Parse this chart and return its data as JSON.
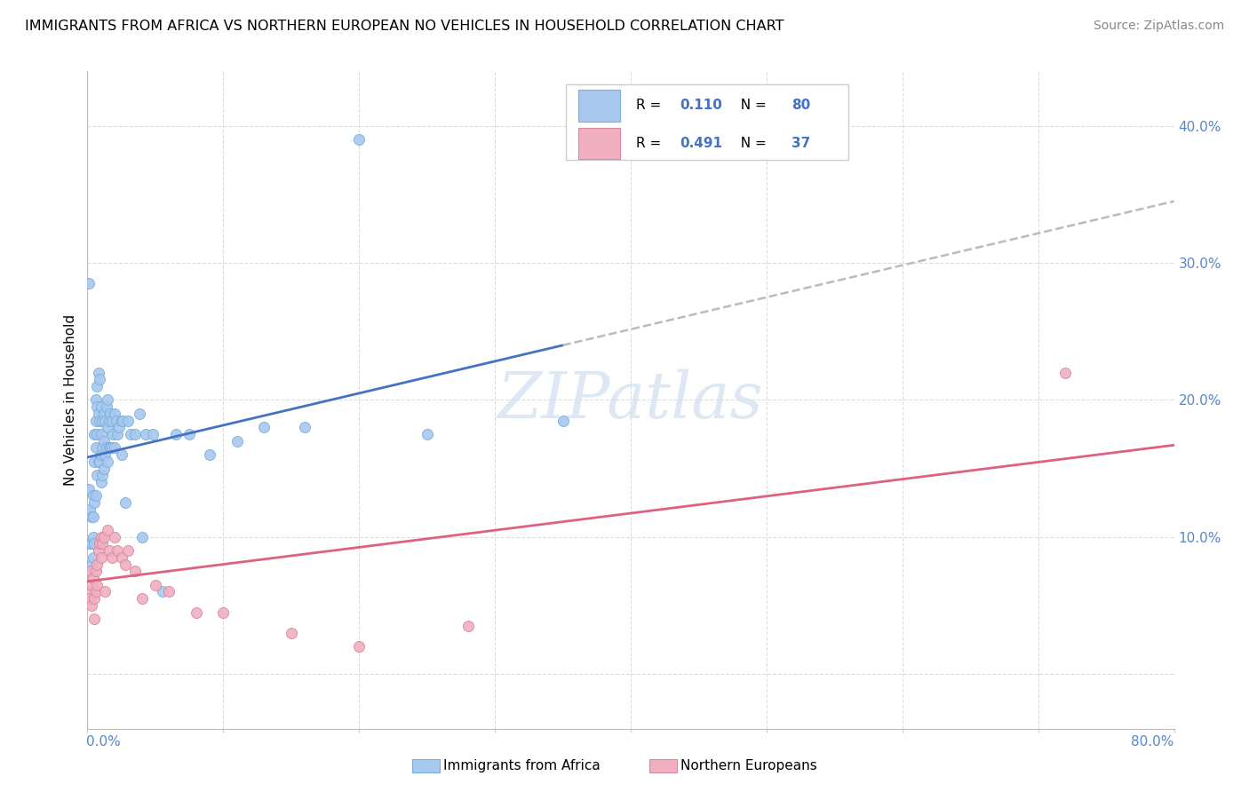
{
  "title": "IMMIGRANTS FROM AFRICA VS NORTHERN EUROPEAN NO VEHICLES IN HOUSEHOLD CORRELATION CHART",
  "source": "Source: ZipAtlas.com",
  "ylabel": "No Vehicles in Household",
  "xlim": [
    0.0,
    0.8
  ],
  "ylim": [
    -0.04,
    0.44
  ],
  "yticks": [
    0.0,
    0.1,
    0.2,
    0.3,
    0.4
  ],
  "ytick_labels": [
    "",
    "10.0%",
    "20.0%",
    "30.0%",
    "40.0%"
  ],
  "africa_color": "#a8c8f0",
  "africa_edge": "#7ab0d8",
  "northern_color": "#f0b0c0",
  "northern_edge": "#d888a0",
  "regression_africa_color": "#4472c4",
  "regression_northern_color": "#e06080",
  "regression_dashed_color": "#bbbbbb",
  "watermark_color": "#d0dff0",
  "africa_x": [
    0.001,
    0.001,
    0.002,
    0.002,
    0.002,
    0.003,
    0.003,
    0.003,
    0.004,
    0.004,
    0.004,
    0.004,
    0.005,
    0.005,
    0.005,
    0.005,
    0.006,
    0.006,
    0.006,
    0.006,
    0.007,
    0.007,
    0.007,
    0.007,
    0.008,
    0.008,
    0.008,
    0.009,
    0.009,
    0.009,
    0.01,
    0.01,
    0.01,
    0.01,
    0.011,
    0.011,
    0.011,
    0.012,
    0.012,
    0.012,
    0.013,
    0.013,
    0.014,
    0.014,
    0.015,
    0.015,
    0.015,
    0.016,
    0.016,
    0.017,
    0.017,
    0.018,
    0.018,
    0.019,
    0.02,
    0.02,
    0.021,
    0.022,
    0.023,
    0.025,
    0.025,
    0.026,
    0.028,
    0.03,
    0.032,
    0.035,
    0.038,
    0.04,
    0.043,
    0.048,
    0.055,
    0.065,
    0.075,
    0.09,
    0.11,
    0.13,
    0.16,
    0.2,
    0.25,
    0.35
  ],
  "africa_y": [
    0.285,
    0.135,
    0.12,
    0.095,
    0.075,
    0.115,
    0.095,
    0.08,
    0.13,
    0.115,
    0.1,
    0.085,
    0.175,
    0.155,
    0.125,
    0.095,
    0.2,
    0.185,
    0.165,
    0.13,
    0.21,
    0.195,
    0.175,
    0.145,
    0.22,
    0.19,
    0.155,
    0.215,
    0.185,
    0.155,
    0.195,
    0.175,
    0.16,
    0.14,
    0.185,
    0.165,
    0.145,
    0.19,
    0.17,
    0.15,
    0.185,
    0.16,
    0.195,
    0.165,
    0.2,
    0.18,
    0.155,
    0.185,
    0.165,
    0.19,
    0.165,
    0.185,
    0.165,
    0.175,
    0.19,
    0.165,
    0.185,
    0.175,
    0.18,
    0.185,
    0.16,
    0.185,
    0.125,
    0.185,
    0.175,
    0.175,
    0.19,
    0.1,
    0.175,
    0.175,
    0.06,
    0.175,
    0.175,
    0.16,
    0.17,
    0.18,
    0.18,
    0.39,
    0.175,
    0.185
  ],
  "northern_x": [
    0.001,
    0.002,
    0.002,
    0.003,
    0.003,
    0.004,
    0.005,
    0.005,
    0.006,
    0.006,
    0.007,
    0.007,
    0.008,
    0.009,
    0.01,
    0.01,
    0.011,
    0.012,
    0.013,
    0.015,
    0.016,
    0.018,
    0.02,
    0.022,
    0.025,
    0.028,
    0.03,
    0.035,
    0.04,
    0.05,
    0.06,
    0.08,
    0.1,
    0.15,
    0.2,
    0.28,
    0.72
  ],
  "northern_y": [
    0.06,
    0.055,
    0.075,
    0.05,
    0.065,
    0.07,
    0.055,
    0.04,
    0.075,
    0.06,
    0.08,
    0.065,
    0.09,
    0.095,
    0.085,
    0.1,
    0.095,
    0.1,
    0.06,
    0.105,
    0.09,
    0.085,
    0.1,
    0.09,
    0.085,
    0.08,
    0.09,
    0.075,
    0.055,
    0.065,
    0.06,
    0.045,
    0.045,
    0.03,
    0.02,
    0.035,
    0.22
  ],
  "africa_R": "0.110",
  "africa_N": "80",
  "northern_R": "0.491",
  "northern_N": "37"
}
